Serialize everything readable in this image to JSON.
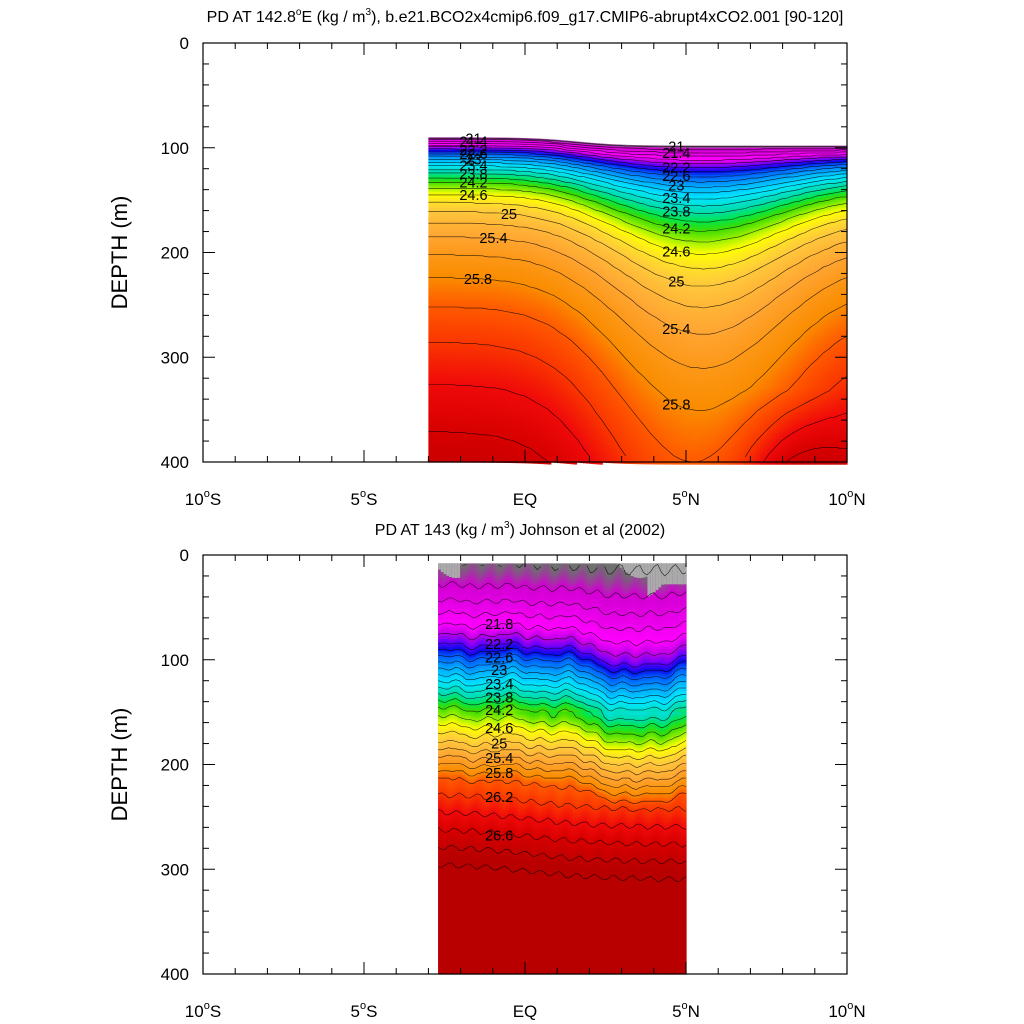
{
  "chart_data": [
    {
      "type": "contour",
      "title_main": "PD AT 142.8",
      "title_deg": "o",
      "title_unit_pre": "E (kg / m",
      "title_unit_sup": "3",
      "title_rest": "), b.e21.BCO2x4cmip6.f09_g17.CMIP6-abrupt4xCO2.001 [90-120]",
      "ylabel": "DEPTH (m)",
      "ylim": [
        0,
        400
      ],
      "yticks": [
        "0",
        "100",
        "200",
        "300",
        "400"
      ],
      "xlim": [
        -10,
        10
      ],
      "xticks": [
        "10°S",
        "5°S",
        "EQ",
        "5°N",
        "10°N"
      ],
      "data_xrange": [
        -3,
        10
      ],
      "contour_interval": 0.2,
      "labeled_contours": [
        "21",
        "21.4",
        "22.2",
        "22.6",
        "23",
        "23.4",
        "23.8",
        "24.2",
        "24.6",
        "25",
        "25.4",
        "25.8"
      ]
    },
    {
      "type": "contour",
      "title_main": "PD AT 143 (kg / m",
      "title_unit_sup": "3",
      "title_rest": ") Johnson et al (2002)",
      "ylabel": "DEPTH (m)",
      "ylim": [
        0,
        400
      ],
      "yticks": [
        "0",
        "100",
        "200",
        "300",
        "400"
      ],
      "xlim": [
        -10,
        10
      ],
      "xticks": [
        "10°S",
        "5°S",
        "EQ",
        "5°N",
        "10°N"
      ],
      "data_xrange": [
        -2.7,
        5
      ],
      "contour_interval": 0.2,
      "labeled_contours": [
        "21.8",
        "22.2",
        "22.6",
        "23",
        "23.4",
        "23.8",
        "24.2",
        "24.6",
        "25",
        "25.4",
        "25.8",
        "26.2",
        "26.6"
      ]
    }
  ]
}
